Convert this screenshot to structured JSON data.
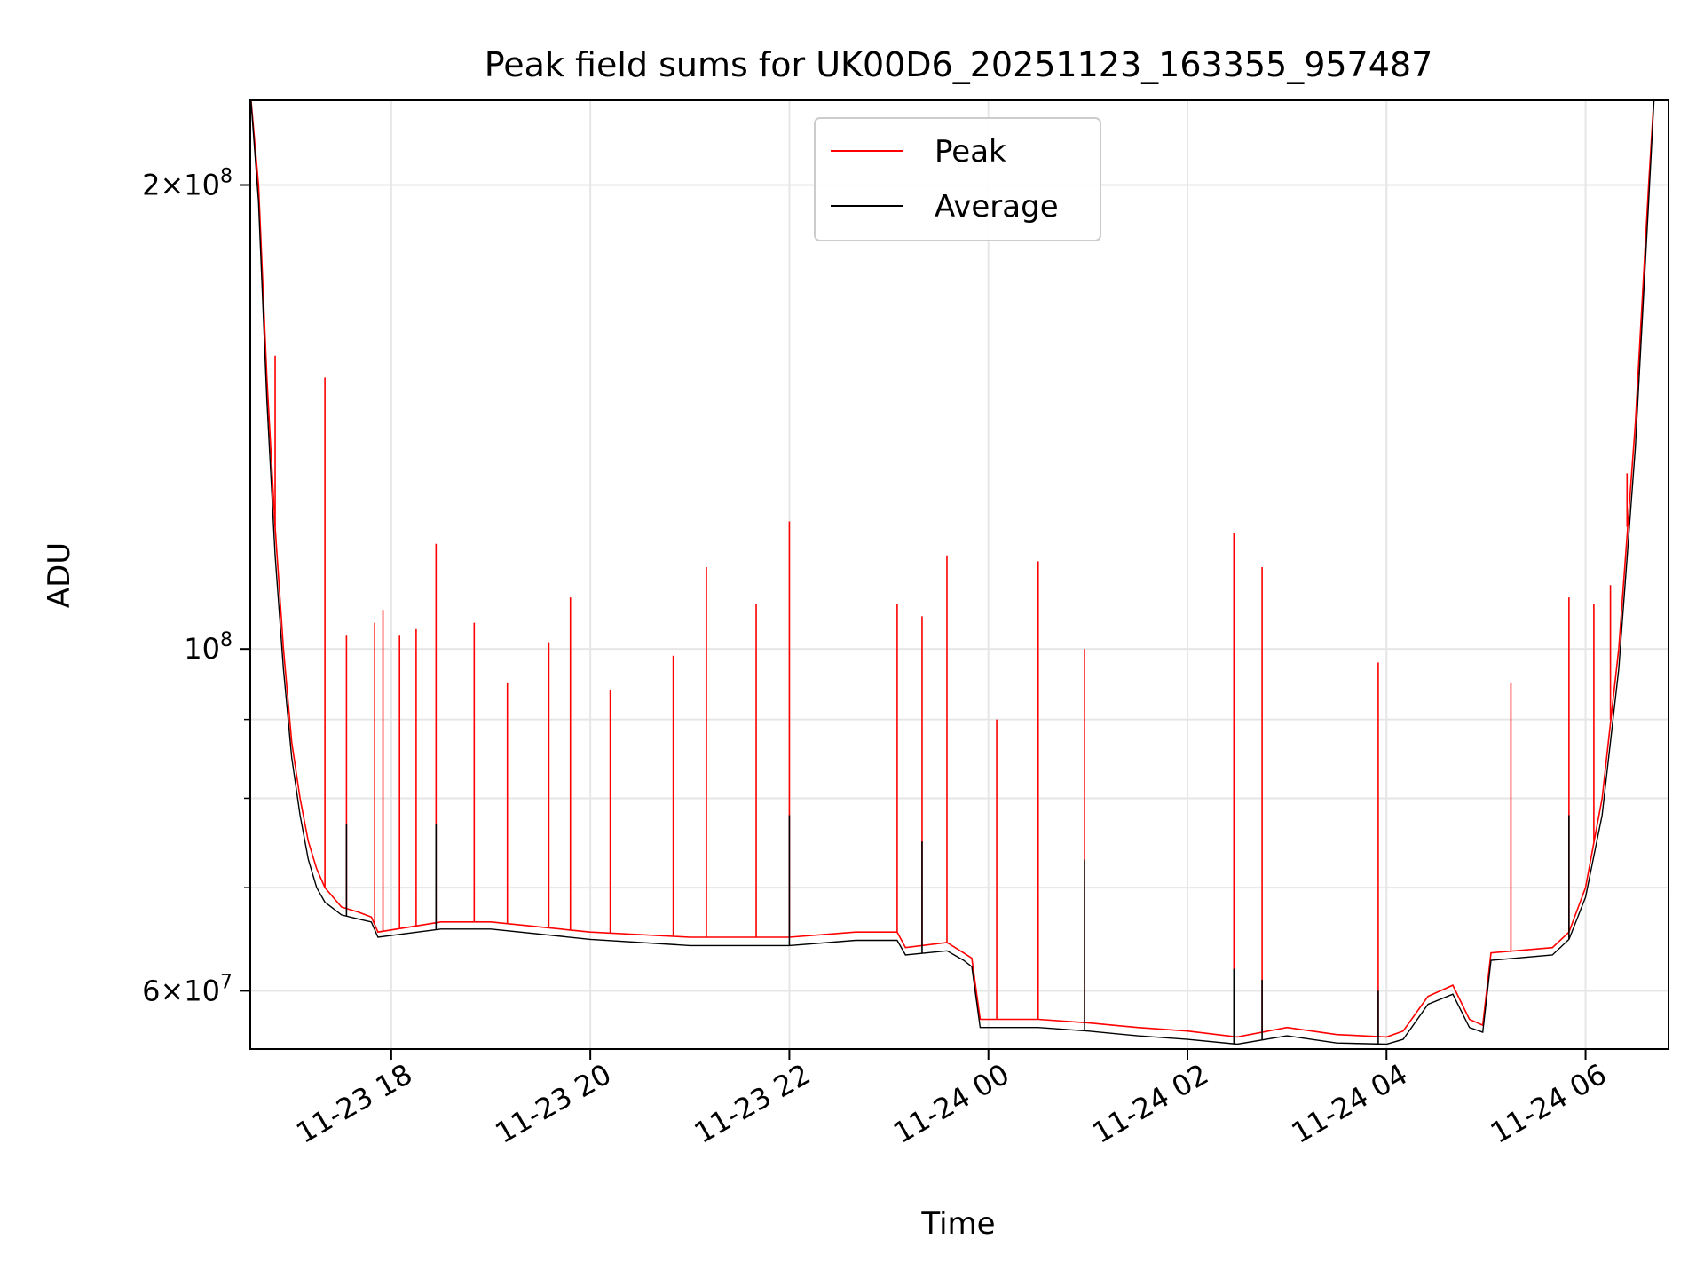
{
  "chart_data": {
    "type": "line",
    "title": "Peak field sums for UK00D6_20251123_163355_957487",
    "xlabel": "Time",
    "ylabel": "ADU",
    "y_scale": "log",
    "grid": true,
    "legend_placement": "upper center",
    "xlim": [
      "2025-11-23 16:35",
      "2025-11-24 06:50"
    ],
    "ylim": [
      55000000,
      227000000
    ],
    "x_ticks": [
      {
        "t": "2025-11-23 18:00",
        "label": "11-23 18"
      },
      {
        "t": "2025-11-23 20:00",
        "label": "11-23 20"
      },
      {
        "t": "2025-11-23 22:00",
        "label": "11-23 22"
      },
      {
        "t": "2025-11-24 00:00",
        "label": "11-24 00"
      },
      {
        "t": "2025-11-24 02:00",
        "label": "11-24 02"
      },
      {
        "t": "2025-11-24 04:00",
        "label": "11-24 04"
      },
      {
        "t": "2025-11-24 06:00",
        "label": "11-24 06"
      }
    ],
    "y_ticks": [
      {
        "value": 200000000,
        "mant": "2",
        "exp": "8"
      },
      {
        "value": 100000000,
        "mant": "",
        "exp": "8"
      },
      {
        "value": 60000000,
        "mant": "6",
        "exp": "7"
      }
    ],
    "series": [
      {
        "name": "Peak",
        "color": "#ff0000",
        "points": [
          [
            "2025-11-23 16:35",
            230000000
          ],
          [
            "2025-11-23 16:40",
            200000000
          ],
          [
            "2025-11-23 16:45",
            150000000
          ],
          [
            "2025-11-23 16:50",
            120000000
          ],
          [
            "2025-11-23 16:55",
            100000000
          ],
          [
            "2025-11-23 17:00",
            87000000
          ],
          [
            "2025-11-23 17:05",
            80000000
          ],
          [
            "2025-11-23 17:10",
            75000000
          ],
          [
            "2025-11-23 17:15",
            72000000
          ],
          [
            "2025-11-23 17:20",
            70000000
          ],
          [
            "2025-11-23 17:30",
            68000000
          ],
          [
            "2025-11-23 17:40",
            67500000
          ],
          [
            "2025-11-23 17:48",
            67000000
          ],
          [
            "2025-11-23 17:52",
            65500000
          ],
          [
            "2025-11-23 18:30",
            66500000
          ],
          [
            "2025-11-23 19:00",
            66500000
          ],
          [
            "2025-11-23 20:00",
            65500000
          ],
          [
            "2025-11-23 21:00",
            65000000
          ],
          [
            "2025-11-23 22:00",
            65000000
          ],
          [
            "2025-11-23 22:40",
            65500000
          ],
          [
            "2025-11-23 23:05",
            65500000
          ],
          [
            "2025-11-23 23:10",
            64000000
          ],
          [
            "2025-11-23 23:35",
            64500000
          ],
          [
            "2025-11-23 23:45",
            63500000
          ],
          [
            "2025-11-23 23:50",
            63000000
          ],
          [
            "2025-11-23 23:55",
            57500000
          ],
          [
            "2025-11-24 00:30",
            57500000
          ],
          [
            "2025-11-24 01:00",
            57200000
          ],
          [
            "2025-11-24 01:30",
            56800000
          ],
          [
            "2025-11-24 02:00",
            56500000
          ],
          [
            "2025-11-24 02:30",
            56000000
          ],
          [
            "2025-11-24 03:00",
            56800000
          ],
          [
            "2025-11-24 03:30",
            56200000
          ],
          [
            "2025-11-24 04:00",
            56000000
          ],
          [
            "2025-11-24 04:10",
            56500000
          ],
          [
            "2025-11-24 04:25",
            59500000
          ],
          [
            "2025-11-24 04:40",
            60500000
          ],
          [
            "2025-11-24 04:50",
            57500000
          ],
          [
            "2025-11-24 04:58",
            57000000
          ],
          [
            "2025-11-24 05:03",
            63500000
          ],
          [
            "2025-11-24 05:40",
            64000000
          ],
          [
            "2025-11-24 05:50",
            65500000
          ],
          [
            "2025-11-24 06:00",
            70000000
          ],
          [
            "2025-11-24 06:10",
            80000000
          ],
          [
            "2025-11-24 06:20",
            100000000
          ],
          [
            "2025-11-24 06:30",
            140000000
          ],
          [
            "2025-11-24 06:38",
            200000000
          ],
          [
            "2025-11-24 06:42",
            235000000
          ]
        ],
        "spikes": [
          [
            "2025-11-23 16:50",
            155000000
          ],
          [
            "2025-11-23 17:20",
            150000000
          ],
          [
            "2025-11-23 17:33",
            102000000
          ],
          [
            "2025-11-23 17:50",
            104000000
          ],
          [
            "2025-11-23 17:55",
            106000000
          ],
          [
            "2025-11-23 18:05",
            102000000
          ],
          [
            "2025-11-23 18:15",
            103000000
          ],
          [
            "2025-11-23 18:27",
            117000000
          ],
          [
            "2025-11-23 18:50",
            104000000
          ],
          [
            "2025-11-23 19:10",
            95000000
          ],
          [
            "2025-11-23 19:35",
            101000000
          ],
          [
            "2025-11-23 19:48",
            108000000
          ],
          [
            "2025-11-23 20:12",
            94000000
          ],
          [
            "2025-11-23 20:50",
            99000000
          ],
          [
            "2025-11-23 21:10",
            113000000
          ],
          [
            "2025-11-23 21:40",
            107000000
          ],
          [
            "2025-11-23 22:00",
            121000000
          ],
          [
            "2025-11-23 23:05",
            107000000
          ],
          [
            "2025-11-23 23:20",
            105000000
          ],
          [
            "2025-11-23 23:35",
            115000000
          ],
          [
            "2025-11-24 00:05",
            90000000
          ],
          [
            "2025-11-24 00:30",
            114000000
          ],
          [
            "2025-11-24 00:58",
            100000000
          ],
          [
            "2025-11-24 02:28",
            119000000
          ],
          [
            "2025-11-24 02:45",
            113000000
          ],
          [
            "2025-11-24 03:55",
            98000000
          ],
          [
            "2025-11-24 05:15",
            95000000
          ],
          [
            "2025-11-24 05:50",
            108000000
          ],
          [
            "2025-11-24 06:05",
            107000000
          ],
          [
            "2025-11-24 06:15",
            110000000
          ],
          [
            "2025-11-24 06:25",
            130000000
          ]
        ]
      },
      {
        "name": "Average",
        "color": "#000000",
        "points": [
          [
            "2025-11-23 16:35",
            230000000
          ],
          [
            "2025-11-23 16:40",
            195000000
          ],
          [
            "2025-11-23 16:45",
            145000000
          ],
          [
            "2025-11-23 16:50",
            115000000
          ],
          [
            "2025-11-23 16:55",
            97000000
          ],
          [
            "2025-11-23 17:00",
            85000000
          ],
          [
            "2025-11-23 17:05",
            78000000
          ],
          [
            "2025-11-23 17:10",
            73000000
          ],
          [
            "2025-11-23 17:15",
            70000000
          ],
          [
            "2025-11-23 17:20",
            68500000
          ],
          [
            "2025-11-23 17:30",
            67200000
          ],
          [
            "2025-11-23 17:40",
            66800000
          ],
          [
            "2025-11-23 17:48",
            66500000
          ],
          [
            "2025-11-23 17:52",
            65000000
          ],
          [
            "2025-11-23 18:30",
            65800000
          ],
          [
            "2025-11-23 19:00",
            65800000
          ],
          [
            "2025-11-23 20:00",
            64800000
          ],
          [
            "2025-11-23 21:00",
            64200000
          ],
          [
            "2025-11-23 22:00",
            64200000
          ],
          [
            "2025-11-23 22:40",
            64700000
          ],
          [
            "2025-11-23 23:05",
            64700000
          ],
          [
            "2025-11-23 23:10",
            63300000
          ],
          [
            "2025-11-23 23:35",
            63700000
          ],
          [
            "2025-11-23 23:45",
            62800000
          ],
          [
            "2025-11-23 23:50",
            62200000
          ],
          [
            "2025-11-23 23:55",
            56800000
          ],
          [
            "2025-11-24 00:30",
            56800000
          ],
          [
            "2025-11-24 01:00",
            56500000
          ],
          [
            "2025-11-24 01:30",
            56100000
          ],
          [
            "2025-11-24 02:00",
            55800000
          ],
          [
            "2025-11-24 02:30",
            55400000
          ],
          [
            "2025-11-24 03:00",
            56100000
          ],
          [
            "2025-11-24 03:30",
            55500000
          ],
          [
            "2025-11-24 04:00",
            55400000
          ],
          [
            "2025-11-24 04:10",
            55800000
          ],
          [
            "2025-11-24 04:25",
            58800000
          ],
          [
            "2025-11-24 04:40",
            59700000
          ],
          [
            "2025-11-24 04:50",
            56800000
          ],
          [
            "2025-11-24 04:58",
            56400000
          ],
          [
            "2025-11-24 05:03",
            62800000
          ],
          [
            "2025-11-24 05:40",
            63300000
          ],
          [
            "2025-11-24 05:50",
            64800000
          ],
          [
            "2025-11-24 06:00",
            69000000
          ],
          [
            "2025-11-24 06:10",
            78000000
          ],
          [
            "2025-11-24 06:20",
            97000000
          ],
          [
            "2025-11-24 06:30",
            135000000
          ],
          [
            "2025-11-24 06:38",
            195000000
          ],
          [
            "2025-11-24 06:42",
            235000000
          ]
        ],
        "spikes": [
          [
            "2025-11-23 17:33",
            77000000
          ],
          [
            "2025-11-23 18:27",
            77000000
          ],
          [
            "2025-11-23 22:00",
            78000000
          ],
          [
            "2025-11-23 23:20",
            75000000
          ],
          [
            "2025-11-24 00:58",
            73000000
          ],
          [
            "2025-11-24 02:28",
            62000000
          ],
          [
            "2025-11-24 02:45",
            61000000
          ],
          [
            "2025-11-24 03:55",
            60000000
          ],
          [
            "2025-11-24 05:50",
            78000000
          ]
        ]
      }
    ]
  }
}
